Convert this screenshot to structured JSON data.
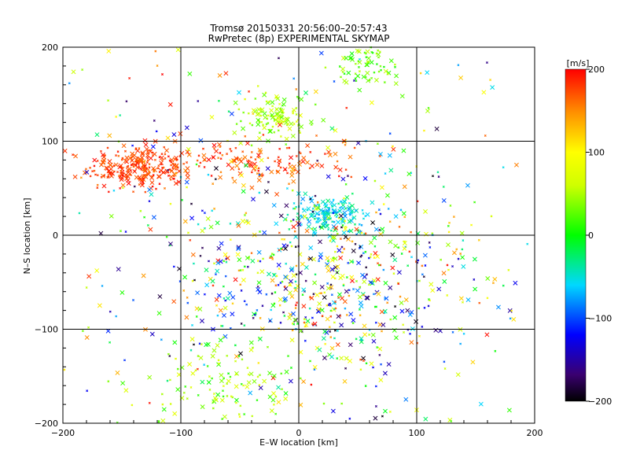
{
  "chart_data": {
    "type": "scatter",
    "title": "Tromsø 20150331 20:56:00–20:57:43",
    "subtitle": "RwPretec (8p) EXPERIMENTAL SKYMAP",
    "xlabel": "E–W location [km]",
    "ylabel": "N–S location [km]",
    "xlim": [
      -200,
      200
    ],
    "ylim": [
      -200,
      200
    ],
    "x_ticks": [
      "−200",
      "−100",
      "0",
      "100",
      "200"
    ],
    "y_ticks": [
      "−200",
      "−100",
      "0",
      "100",
      "200"
    ],
    "grid": true,
    "marker": "x",
    "point_distribution": {
      "description_note": "dense cloud of velocity-coded detections; sampled clusters below",
      "clusters": [
        {
          "center": [
            -135,
            72
          ],
          "spread": [
            22,
            12
          ],
          "velocity_range": [
            160,
            200
          ],
          "count": 260
        },
        {
          "center": [
            -40,
            78
          ],
          "spread": [
            40,
            10
          ],
          "velocity_range": [
            150,
            200
          ],
          "count": 140
        },
        {
          "center": [
            -20,
            125
          ],
          "spread": [
            14,
            14
          ],
          "velocity_range": [
            20,
            80
          ],
          "count": 120
        },
        {
          "center": [
            25,
            22
          ],
          "spread": [
            18,
            10
          ],
          "velocity_range": [
            -80,
            -20
          ],
          "count": 160
        },
        {
          "center": [
            60,
            180
          ],
          "spread": [
            14,
            12
          ],
          "velocity_range": [
            0,
            60
          ],
          "count": 70
        },
        {
          "center": [
            30,
            -50
          ],
          "spread": [
            60,
            45
          ],
          "velocity_range": [
            -200,
            200
          ],
          "count": 520
        },
        {
          "center": [
            -60,
            -160
          ],
          "spread": [
            35,
            25
          ],
          "velocity_range": [
            0,
            80
          ],
          "count": 120
        },
        {
          "center": [
            0,
            0
          ],
          "spread": [
            150,
            150
          ],
          "velocity_range": [
            -200,
            200
          ],
          "count": 520
        }
      ]
    },
    "colorbar": {
      "label": "[m/s]",
      "min": -200,
      "max": 200,
      "ticks": [
        "200",
        "100",
        "0",
        "−100",
        "−200"
      ],
      "tick_values": [
        200,
        100,
        0,
        -100,
        -200
      ]
    }
  }
}
